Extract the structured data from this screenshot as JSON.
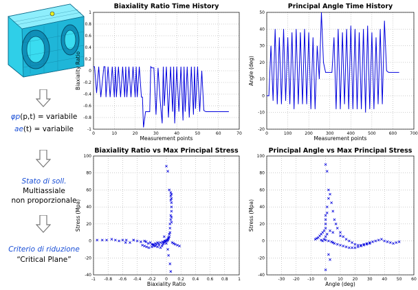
{
  "left": {
    "line1_label": "(p,t) = variabile",
    "line1_sym": "φp",
    "line2_label": "(t) = variabile",
    "line2_sym": "ae",
    "state_title": "Stato di soll.",
    "state_line1": "Multiassiale",
    "state_line2": "non proporzionale",
    "criterion_title": "Criterio di riduzione",
    "criterion_value": "“Critical Plane”"
  },
  "colors": {
    "series": "#0000dd",
    "grid": "#9a9a9a",
    "accent_text": "#1a4fd6",
    "model": "#22c6e6"
  },
  "chart_data": [
    {
      "type": "line",
      "title": "Biaxiality Ratio Time History",
      "xlabel": "Measurement points",
      "ylabel": "Biaxiality Ratio",
      "xlim": [
        0,
        70
      ],
      "ylim": [
        -1,
        1
      ],
      "xticks": [
        0,
        10,
        20,
        30,
        40,
        50,
        60,
        70
      ],
      "yticks": [
        -1,
        -0.8,
        -0.6,
        -0.4,
        -0.2,
        0,
        0.2,
        0.4,
        0.6,
        0.8,
        1
      ],
      "ytick_labels": [
        "-1",
        "-0.8",
        "-0.6",
        "-0.4",
        "-0.2",
        "0",
        "0.2",
        "0.4",
        "0.6",
        "0.8",
        "1"
      ],
      "grid": true,
      "series": [
        {
          "x": [
            0,
            0.5,
            1.5,
            2.5,
            3.5,
            5,
            5.5,
            6,
            7,
            8,
            9,
            10,
            10.5,
            11,
            12,
            13,
            14,
            15,
            15.5,
            16,
            17,
            18,
            19,
            20,
            20.5,
            21,
            22,
            23,
            23.5,
            24,
            25,
            26,
            27,
            27.5,
            28,
            29,
            30,
            31,
            32,
            33,
            33.5,
            34,
            35,
            36,
            37,
            38,
            38.5,
            39,
            40,
            41,
            42,
            43,
            43.5,
            44,
            45,
            46,
            47,
            48,
            48.5,
            49,
            50,
            51,
            52,
            53,
            54,
            55,
            56,
            57,
            58,
            59,
            60,
            61,
            62,
            63,
            64,
            65
          ],
          "y": [
            0.07,
            0.07,
            -0.38,
            0.07,
            -0.45,
            0.07,
            0.07,
            -0.45,
            0.07,
            -0.45,
            0.07,
            -0.45,
            0.07,
            -0.45,
            0.07,
            -0.45,
            0.07,
            -0.45,
            0.07,
            -0.45,
            0.07,
            -0.45,
            0.07,
            -0.45,
            0.07,
            -0.45,
            0.07,
            -0.45,
            -0.45,
            -0.97,
            -0.7,
            -0.7,
            -0.7,
            0.07,
            0.05,
            0.05,
            -0.75,
            0.05,
            -0.5,
            -0.9,
            0.07,
            -0.6,
            0.07,
            -0.8,
            0.07,
            -0.7,
            0.07,
            -0.9,
            0.07,
            -0.7,
            0.07,
            -0.85,
            0.07,
            -0.7,
            0.07,
            -0.8,
            0.07,
            -0.75,
            0.07,
            -0.65,
            0.07,
            -0.7,
            0.0,
            -0.68,
            -0.7,
            -0.7,
            -0.7,
            -0.7,
            -0.7,
            -0.7,
            -0.7,
            -0.7,
            -0.7,
            -0.7,
            -0.7,
            -0.7
          ]
        }
      ]
    },
    {
      "type": "line",
      "title": "Principal Angle Time History",
      "xlabel": "Measurement points",
      "ylabel": "Angle (deg)",
      "xlim": [
        0,
        700
      ],
      "ylim": [
        -20,
        50
      ],
      "xticks": [
        0,
        100,
        200,
        300,
        400,
        500,
        600,
        700
      ],
      "yticks": [
        -20,
        -10,
        0,
        10,
        20,
        30,
        40,
        50
      ],
      "ytick_labels": [
        "-20",
        "-10",
        "0",
        "10",
        "20",
        "30",
        "40",
        "50"
      ],
      "grid": true,
      "series": [
        {
          "x": [
            0,
            10,
            20,
            30,
            40,
            50,
            60,
            70,
            80,
            90,
            100,
            110,
            120,
            130,
            140,
            150,
            160,
            170,
            180,
            190,
            200,
            210,
            220,
            230,
            240,
            250,
            260,
            270,
            280,
            290,
            300,
            310,
            320,
            330,
            340,
            350,
            360,
            370,
            380,
            390,
            400,
            410,
            420,
            430,
            440,
            450,
            460,
            470,
            480,
            490,
            500,
            510,
            520,
            530,
            540,
            550,
            560,
            570,
            580,
            590,
            600,
            610,
            620,
            630
          ],
          "y": [
            0,
            0,
            30,
            -3,
            40,
            -5,
            35,
            -5,
            40,
            -3,
            35,
            -5,
            38,
            -8,
            40,
            -5,
            38,
            -5,
            40,
            -5,
            38,
            -8,
            35,
            -8,
            30,
            10,
            50,
            20,
            14,
            14,
            14,
            14,
            35,
            -8,
            40,
            -8,
            38,
            -5,
            40,
            -8,
            42,
            -8,
            40,
            -8,
            38,
            -8,
            40,
            -10,
            42,
            -8,
            38,
            -8,
            35,
            -5,
            40,
            -5,
            45,
            15,
            14,
            14,
            14,
            14,
            14,
            14
          ]
        }
      ]
    },
    {
      "type": "scatter",
      "title": "Biaxiality Ratio vs Max Principal Stress",
      "xlabel": "Biaxiality Ratio",
      "ylabel": "Stress (Mpa)",
      "xlim": [
        -1,
        1
      ],
      "ylim": [
        -40,
        100
      ],
      "xticks": [
        -1,
        -0.8,
        -0.6,
        -0.4,
        -0.2,
        0,
        0.2,
        0.4,
        0.6,
        0.8,
        1
      ],
      "xtick_labels": [
        "-1",
        "-0.8",
        "-0.6",
        "-0.4",
        "-0.2",
        "0",
        "0.2",
        "0.4",
        "0.6",
        "0.8",
        "1"
      ],
      "yticks": [
        -40,
        -20,
        0,
        20,
        40,
        60,
        80,
        100
      ],
      "ytick_labels": [
        "-40",
        "-20",
        "0",
        "20",
        "40",
        "60",
        "80",
        "100"
      ],
      "grid": true,
      "series": [
        {
          "x": [
            -0.95,
            -0.88,
            -0.82,
            -0.75,
            -0.7,
            -0.65,
            -0.6,
            -0.55,
            -0.5,
            -0.45,
            -0.4,
            -0.35,
            -0.3,
            -0.28,
            -0.25,
            -0.22,
            -0.2,
            -0.18,
            -0.15,
            -0.12,
            -0.1,
            -0.08,
            -0.06,
            -0.05,
            -0.04,
            -0.03,
            -0.02,
            -0.01,
            0.0,
            0.01,
            0.02,
            0.03,
            0.04,
            0.05,
            0.05,
            0.06,
            0.06,
            0.07,
            0.07,
            0.07,
            0.07,
            0.07,
            0.06,
            0.06,
            0.07,
            0.07,
            0.05,
            0.04,
            0.03,
            0.02,
            0.08,
            0.1,
            0.12,
            0.15,
            0.18,
            -0.33,
            -0.3,
            -0.27,
            -0.24,
            -0.2,
            -0.17,
            -0.14,
            -0.11,
            -0.08,
            -0.05,
            -0.02,
            -0.12,
            -0.15,
            -0.18,
            0.02,
            0.03,
            0.05,
            0.06,
            -0.45,
            -0.56,
            0.0,
            0.02,
            0.04,
            0.06,
            -0.03,
            0.0
          ],
          "y": [
            1,
            1,
            1,
            2,
            1,
            0,
            1,
            1,
            -2,
            1,
            0,
            -1,
            0,
            -1,
            -3,
            -2,
            -4,
            -5,
            -6,
            -7,
            -5,
            -8,
            -6,
            -4,
            -3,
            -2,
            -1,
            0,
            1,
            0,
            2,
            4,
            8,
            15,
            20,
            25,
            30,
            35,
            40,
            45,
            50,
            55,
            57,
            53,
            28,
            22,
            10,
            5,
            3,
            1,
            -2,
            -3,
            -4,
            -5,
            -6,
            -5,
            -6,
            -7,
            -8,
            -7,
            -6,
            -4,
            -3,
            -2,
            -1,
            0,
            -2,
            -3,
            -4,
            -10,
            -17,
            -27,
            -36,
            1,
            -2,
            88,
            82,
            60,
            48,
            5,
            -3
          ]
        }
      ]
    },
    {
      "type": "scatter",
      "title": "Principal Angle vs Max Principal Stress",
      "xlabel": "Angle (deg)",
      "ylabel": "Stress (Mpa)",
      "xlim": [
        -40,
        60
      ],
      "ylim": [
        -40,
        100
      ],
      "xticks": [
        -40,
        -30,
        -20,
        -10,
        0,
        10,
        20,
        30,
        40,
        50,
        60
      ],
      "xtick_labels": [
        "",
        "-30",
        "-20",
        "-10",
        "0",
        "10",
        "20",
        "30",
        "40",
        "50",
        "60"
      ],
      "yticks": [
        -40,
        -20,
        0,
        20,
        40,
        60,
        80,
        100
      ],
      "ytick_labels": [
        "-40",
        "-20",
        "0",
        "20",
        "40",
        "60",
        "80",
        "100"
      ],
      "grid": true,
      "series": [
        {
          "x": [
            -7,
            -6,
            -5,
            -4,
            -3,
            -2,
            -1,
            0,
            0,
            0,
            0,
            1,
            1,
            2,
            2,
            3,
            4,
            5,
            6,
            7,
            8,
            10,
            12,
            14,
            16,
            18,
            20,
            22,
            24,
            26,
            28,
            30,
            32,
            34,
            36,
            38,
            40,
            42,
            44,
            46,
            48,
            50,
            12,
            14,
            16,
            18,
            20,
            22,
            24,
            26,
            28,
            30,
            -2,
            -3,
            -1,
            0,
            2,
            4,
            5,
            6,
            8,
            10,
            2,
            3,
            0,
            0,
            1,
            0,
            1,
            3,
            5,
            10
          ],
          "y": [
            2,
            3,
            4,
            6,
            8,
            10,
            12,
            15,
            20,
            25,
            30,
            33,
            40,
            50,
            60,
            55,
            45,
            35,
            25,
            20,
            15,
            10,
            5,
            2,
            0,
            -2,
            -4,
            -5,
            -5,
            -4,
            -3,
            -2,
            -1,
            0,
            1,
            2,
            0,
            -1,
            -2,
            -3,
            -2,
            -1,
            -6,
            -7,
            -8,
            -8,
            -8,
            -7,
            -6,
            -5,
            -4,
            -3,
            0,
            1,
            2,
            1,
            0,
            -1,
            -2,
            -3,
            -4,
            -5,
            -16,
            -22,
            -34,
            90,
            82,
            5,
            8,
            12,
            10,
            6
          ]
        }
      ]
    }
  ]
}
